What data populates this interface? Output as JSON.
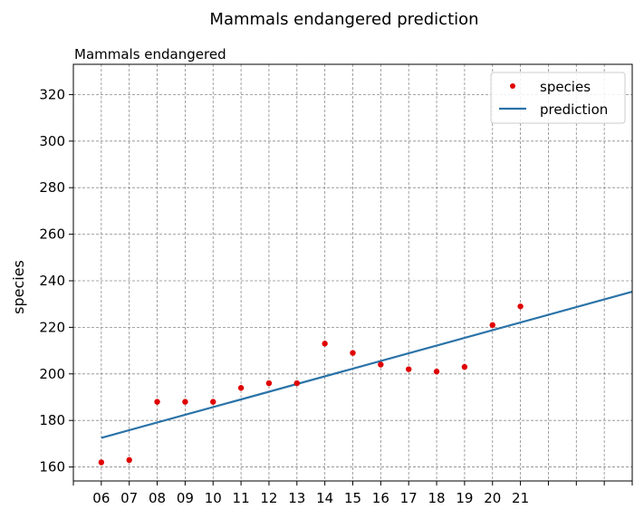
{
  "chart_data": {
    "type": "scatter",
    "title": "Mammals endangered prediction",
    "subtitle": "Mammals endangered",
    "xlabel": "",
    "ylabel": "species",
    "x_tick_labels": [
      "06",
      "07",
      "08",
      "09",
      "10",
      "11",
      "12",
      "13",
      "14",
      "15",
      "16",
      "17",
      "18",
      "19",
      "20",
      "21"
    ],
    "xlim": [
      5,
      25
    ],
    "ylim": [
      154,
      333
    ],
    "y_ticks": [
      160,
      180,
      200,
      220,
      240,
      260,
      280,
      300,
      320
    ],
    "grid": true,
    "legend_position": "top-right",
    "series": [
      {
        "name": "species",
        "kind": "points",
        "color": "#e00000",
        "x": [
          6,
          7,
          8,
          9,
          10,
          11,
          12,
          13,
          14,
          15,
          16,
          17,
          18,
          19,
          20,
          21
        ],
        "y": [
          162,
          163,
          188,
          188,
          188,
          194,
          196,
          196,
          213,
          209,
          204,
          202,
          201,
          203,
          221,
          229
        ]
      },
      {
        "name": "prediction",
        "kind": "line",
        "color": "#2a73a8",
        "x": [
          6,
          25
        ],
        "y": [
          172.5,
          235.3
        ]
      }
    ]
  }
}
